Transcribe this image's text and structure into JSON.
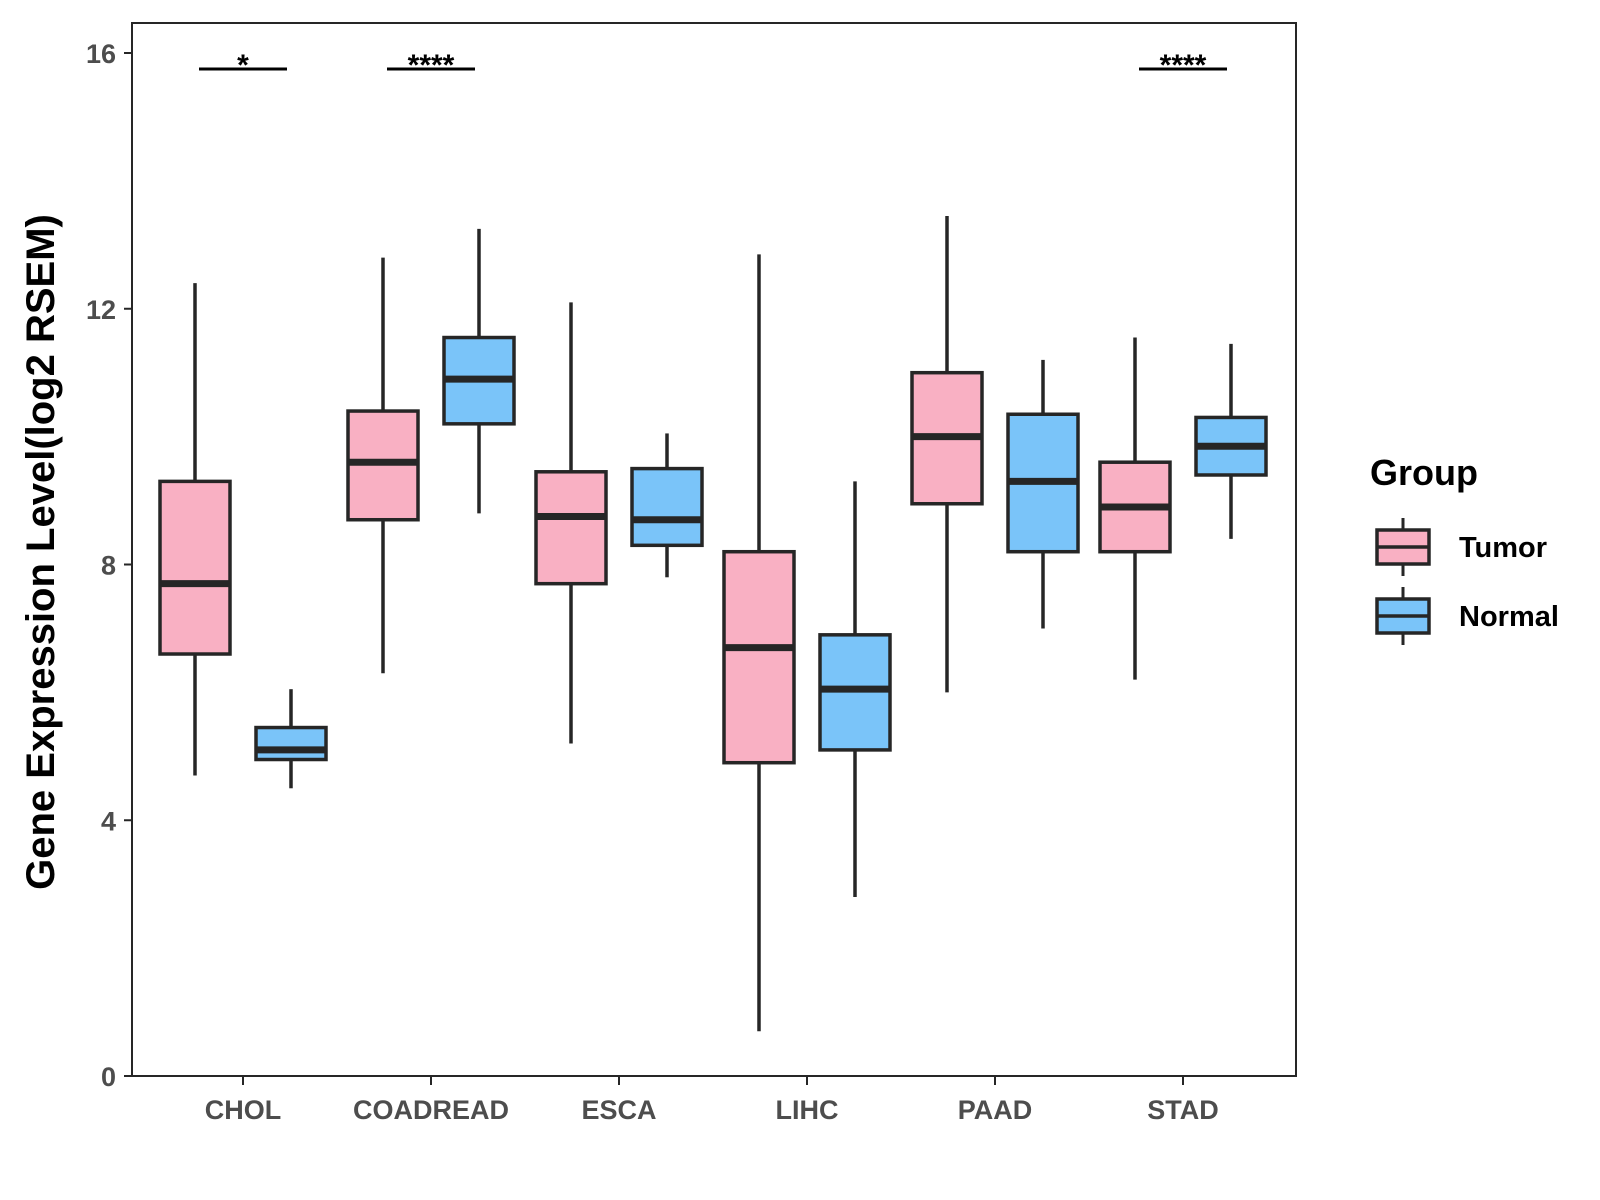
{
  "chart_data": {
    "type": "boxplot",
    "title": "",
    "xlabel": "",
    "ylabel": "Gene Expression Level(log2 RSEM)",
    "ylim": [
      0,
      16.5
    ],
    "yticks": [
      0,
      4,
      8,
      12,
      16
    ],
    "categories": [
      "CHOL",
      "COADREAD",
      "ESCA",
      "LIHC",
      "PAAD",
      "STAD"
    ],
    "legend": {
      "title": "Group",
      "position": "right"
    },
    "series": [
      {
        "name": "Tumor",
        "color": "#F9B0C3",
        "boxes": [
          {
            "category": "CHOL",
            "min": 4.7,
            "q1": 6.6,
            "median": 7.7,
            "q3": 9.3,
            "max": 12.4
          },
          {
            "category": "COADREAD",
            "min": 6.3,
            "q1": 8.7,
            "median": 9.6,
            "q3": 10.4,
            "max": 12.8
          },
          {
            "category": "ESCA",
            "min": 5.2,
            "q1": 7.7,
            "median": 8.75,
            "q3": 9.45,
            "max": 12.1
          },
          {
            "category": "LIHC",
            "min": 0.7,
            "q1": 4.9,
            "median": 6.7,
            "q3": 8.2,
            "max": 12.85
          },
          {
            "category": "PAAD",
            "min": 6.0,
            "q1": 8.95,
            "median": 10.0,
            "q3": 11.0,
            "max": 13.45
          },
          {
            "category": "STAD",
            "min": 6.2,
            "q1": 8.2,
            "median": 8.9,
            "q3": 9.6,
            "max": 11.55
          }
        ]
      },
      {
        "name": "Normal",
        "color": "#7AC4F9",
        "boxes": [
          {
            "category": "CHOL",
            "min": 4.5,
            "q1": 4.95,
            "median": 5.1,
            "q3": 5.45,
            "max": 6.05
          },
          {
            "category": "COADREAD",
            "min": 8.8,
            "q1": 10.2,
            "median": 10.9,
            "q3": 11.55,
            "max": 13.25
          },
          {
            "category": "ESCA",
            "min": 7.8,
            "q1": 8.3,
            "median": 8.7,
            "q3": 9.5,
            "max": 10.05
          },
          {
            "category": "LIHC",
            "min": 2.8,
            "q1": 5.1,
            "median": 6.05,
            "q3": 6.9,
            "max": 9.3
          },
          {
            "category": "PAAD",
            "min": 7.0,
            "q1": 8.2,
            "median": 9.3,
            "q3": 10.35,
            "max": 11.2
          },
          {
            "category": "STAD",
            "min": 8.4,
            "q1": 9.4,
            "median": 9.85,
            "q3": 10.3,
            "max": 11.45
          }
        ]
      }
    ],
    "significance": [
      {
        "category": "CHOL",
        "label": "*"
      },
      {
        "category": "COADREAD",
        "label": "****"
      },
      {
        "category": "STAD",
        "label": "****"
      }
    ],
    "significance_y": 15.75
  }
}
